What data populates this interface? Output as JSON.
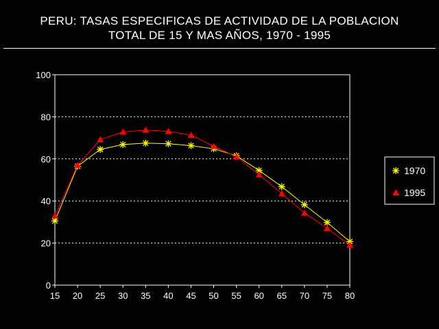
{
  "title": {
    "line1": "PERU: TASAS ESPECIFICAS DE ACTIVIDAD DE LA POBLACION",
    "line2": "TOTAL DE 15 Y MAS AÑOS, 1970 - 1995"
  },
  "chart_data": {
    "type": "line",
    "title": "PERU: TASAS ESPECIFICAS DE ACTIVIDAD DE LA POBLACION TOTAL DE 15 Y MAS AÑOS, 1970 - 1995",
    "xlabel": "",
    "ylabel": "",
    "x": [
      15,
      20,
      25,
      30,
      35,
      40,
      45,
      50,
      55,
      60,
      65,
      70,
      75,
      80
    ],
    "xlim": [
      15,
      80
    ],
    "ylim": [
      0,
      100
    ],
    "yticks": [
      0,
      20,
      40,
      60,
      80,
      100
    ],
    "grid": "horizontal dotted",
    "legend_position": "right",
    "series": [
      {
        "name": "1970",
        "color": "#ffff00",
        "marker": "asterisk",
        "values": [
          30.5,
          56.5,
          64.5,
          66.8,
          67.5,
          67.2,
          66.3,
          64.8,
          61.5,
          54.5,
          46.8,
          38.2,
          29.8,
          20.7
        ]
      },
      {
        "name": "1995",
        "color": "#ff0000",
        "marker": "triangle",
        "values": [
          33.0,
          57.0,
          69.2,
          72.8,
          73.7,
          73.1,
          71.3,
          66.0,
          61.0,
          52.5,
          43.5,
          34.3,
          27.0,
          19.0
        ]
      }
    ]
  }
}
